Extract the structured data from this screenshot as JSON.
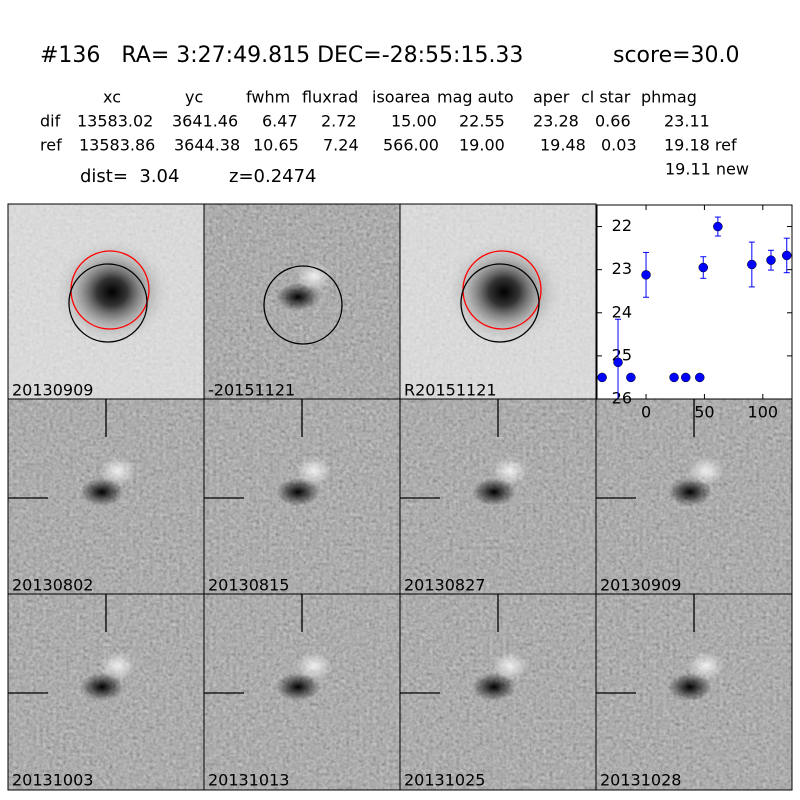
{
  "header": {
    "title": "#136   RA= 3:27:49.815 DEC=-28:55:15.33",
    "score": "score=30.0"
  },
  "table": {
    "columns": [
      "xc",
      "yc",
      "fwhm",
      "fluxrad",
      "isoarea",
      "mag auto",
      "aper",
      "cl star",
      "phmag"
    ],
    "rows": [
      [
        "dif",
        "13583.02",
        "3641.46",
        "6.47",
        "2.72",
        "15.00",
        "22.55",
        "23.28",
        "0.66",
        "23.11"
      ],
      [
        "ref",
        "13583.86",
        "3644.38",
        "10.65",
        "7.24",
        "566.00",
        "19.00",
        "19.48",
        "0.03",
        "19.18 ref"
      ]
    ],
    "extra": "19.11 new",
    "dist": "dist=  3.04",
    "z": "z=0.2474"
  },
  "stamps": [
    {
      "label": "20130909"
    },
    {
      "label": "-20151121"
    },
    {
      "label": "R20151121"
    },
    {
      "label": "20130802"
    },
    {
      "label": "20130815"
    },
    {
      "label": "20130827"
    },
    {
      "label": "20130909",
      "color": "#ff0000"
    },
    {
      "label": "20131003"
    },
    {
      "label": "20131013"
    },
    {
      "label": "20131025"
    },
    {
      "label": "20131028"
    }
  ],
  "chart_data": {
    "type": "errorbar",
    "color": "#0000ff",
    "x": [
      -37.6,
      -24,
      -13,
      0,
      24,
      34,
      46,
      49,
      61.5,
      90.6,
      107,
      120.5
    ],
    "values": [
      25.5,
      25.15,
      25.5,
      23.12,
      25.5,
      25.5,
      25.5,
      22.95,
      22.0,
      22.88,
      22.78,
      22.67
    ],
    "errors": [
      0.05,
      1.0,
      0.05,
      0.52,
      0.05,
      0.05,
      0.05,
      0.25,
      0.22,
      0.52,
      0.23,
      0.4
    ],
    "xlim": [
      -42,
      125
    ],
    "ylim": [
      26,
      21.5
    ],
    "xticks": [
      0,
      50,
      100
    ],
    "yticks": [
      22,
      23,
      24,
      25,
      26
    ]
  }
}
